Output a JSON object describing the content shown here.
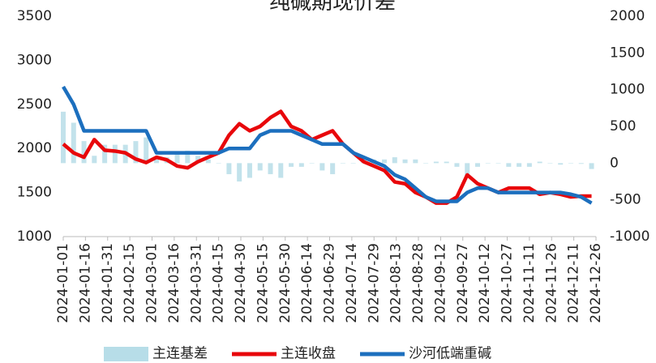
{
  "chart_data": {
    "type": "line",
    "title": "纯碱期现价差",
    "x": [
      "2024-01-01",
      "2024-01-08",
      "2024-01-15",
      "2024-01-22",
      "2024-01-29",
      "2024-02-05",
      "2024-02-12",
      "2024-02-19",
      "2024-02-26",
      "2024-03-04",
      "2024-03-11",
      "2024-03-18",
      "2024-03-25",
      "2024-04-01",
      "2024-04-08",
      "2024-04-15",
      "2024-04-22",
      "2024-04-29",
      "2024-05-06",
      "2024-05-13",
      "2024-05-20",
      "2024-05-27",
      "2024-06-03",
      "2024-06-10",
      "2024-06-17",
      "2024-06-24",
      "2024-07-01",
      "2024-07-08",
      "2024-07-15",
      "2024-07-22",
      "2024-07-29",
      "2024-08-05",
      "2024-08-12",
      "2024-08-19",
      "2024-08-26",
      "2024-09-02",
      "2024-09-09",
      "2024-09-16",
      "2024-09-23",
      "2024-09-30",
      "2024-10-07",
      "2024-10-14",
      "2024-10-21",
      "2024-10-28",
      "2024-11-04",
      "2024-11-11",
      "2024-11-18",
      "2024-11-25",
      "2024-12-02",
      "2024-12-09",
      "2024-12-16",
      "2024-12-23"
    ],
    "series": [
      {
        "name": "主连基差",
        "type": "bar",
        "axis": "y2",
        "color": "#b7dde8",
        "values": [
          700,
          550,
          300,
          100,
          250,
          250,
          250,
          300,
          350,
          50,
          80,
          150,
          170,
          100,
          50,
          0,
          -150,
          -250,
          -200,
          -100,
          -150,
          -200,
          -50,
          -50,
          0,
          -100,
          -150,
          0,
          0,
          50,
          50,
          50,
          80,
          50,
          50,
          0,
          20,
          20,
          -50,
          -200,
          -50,
          0,
          0,
          -50,
          -50,
          -50,
          20,
          0,
          -20,
          0,
          -10,
          -80
        ]
      },
      {
        "name": "主连收盘",
        "type": "line",
        "color": "#e8070b",
        "values": [
          2050,
          1950,
          1900,
          2100,
          1980,
          1970,
          1950,
          1880,
          1840,
          1900,
          1870,
          1800,
          1780,
          1850,
          1900,
          1950,
          2150,
          2280,
          2200,
          2250,
          2350,
          2420,
          2250,
          2200,
          2100,
          2150,
          2200,
          2050,
          1950,
          1850,
          1800,
          1750,
          1620,
          1600,
          1500,
          1450,
          1380,
          1380,
          1450,
          1700,
          1600,
          1550,
          1500,
          1550,
          1550,
          1550,
          1480,
          1500,
          1480,
          1450,
          1460,
          1460
        ]
      },
      {
        "name": "沙河低端重碱",
        "type": "line",
        "color": "#1c6fbe",
        "values": [
          2700,
          2500,
          2200,
          2200,
          2200,
          2200,
          2200,
          2200,
          2200,
          1950,
          1950,
          1950,
          1950,
          1950,
          1950,
          1950,
          2000,
          2000,
          2000,
          2150,
          2200,
          2200,
          2200,
          2150,
          2100,
          2050,
          2050,
          2050,
          1950,
          1900,
          1850,
          1800,
          1700,
          1650,
          1550,
          1450,
          1400,
          1400,
          1400,
          1500,
          1550,
          1550,
          1500,
          1500,
          1500,
          1500,
          1500,
          1500,
          1500,
          1480,
          1450,
          1380
        ]
      }
    ],
    "xlim": [
      "2024-01-01",
      "2024-12-26"
    ],
    "xticks": [
      "2024-01-01",
      "2024-01-16",
      "2024-01-31",
      "2024-02-15",
      "2024-03-01",
      "2024-03-16",
      "2024-03-31",
      "2024-04-15",
      "2024-04-30",
      "2024-05-15",
      "2024-05-30",
      "2024-06-14",
      "2024-06-29",
      "2024-07-14",
      "2024-07-29",
      "2024-08-13",
      "2024-08-28",
      "2024-09-12",
      "2024-09-27",
      "2024-10-12",
      "2024-10-27",
      "2024-11-11",
      "2024-11-26",
      "2024-12-11",
      "2024-12-26"
    ],
    "ylim": [
      1000,
      3500
    ],
    "yticks": [
      1000,
      1500,
      2000,
      2500,
      3000,
      3500
    ],
    "y2lim": [
      -1000,
      2000
    ],
    "y2ticks": [
      -1000,
      -500,
      0,
      500,
      1000,
      1500,
      2000
    ],
    "legend": "bottom"
  }
}
